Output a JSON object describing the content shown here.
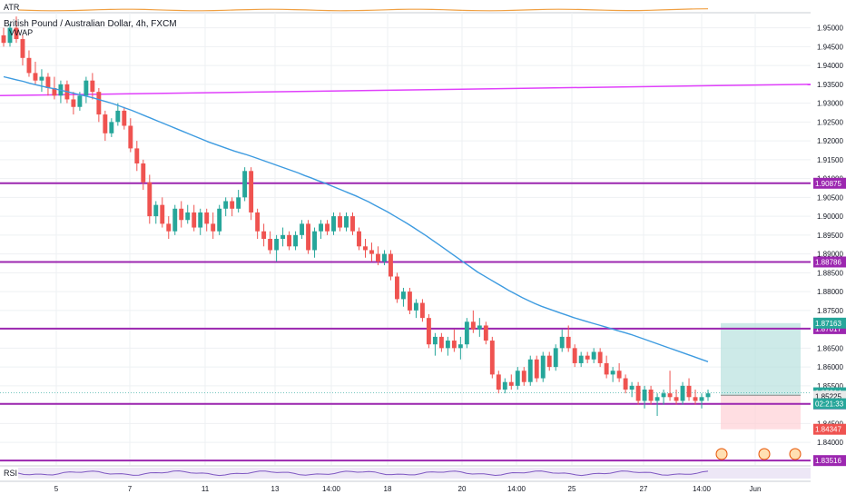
{
  "header": {
    "indicator_atr": "ATR",
    "symbol": "British Pound / Australian Dollar, 4h, FXCM",
    "indicator_vwap": "VWAP",
    "indicator_rsi": "RSI"
  },
  "colors": {
    "up": "#26a69a",
    "down": "#ef5350",
    "ma": "#3d9be0",
    "level": "#9c27b0",
    "trend": "#e040fb",
    "atr": "#f0a043",
    "rsi": "#7e57c2",
    "grid": "#eef0f3"
  },
  "chart_data": {
    "type": "candlestick",
    "ylim": [
      1.834,
      1.954
    ],
    "y_ticks": [
      "1.95000",
      "1.94500",
      "1.94000",
      "1.93500",
      "1.93000",
      "1.92500",
      "1.92000",
      "1.91500",
      "1.91000",
      "1.90500",
      "1.90000",
      "1.89500",
      "1.89000",
      "1.88500",
      "1.88000",
      "1.87500",
      "1.87000",
      "1.86500",
      "1.86000",
      "1.85500",
      "1.85000",
      "1.84500",
      "1.84000"
    ],
    "x_labels": [
      "5",
      "7",
      "11",
      "13",
      "14:00",
      "18",
      "20",
      "14:00",
      "25",
      "27",
      "14:00",
      "Jun"
    ],
    "horizontal_levels": [
      {
        "value": 1.90875,
        "label": "1.90875"
      },
      {
        "value": 1.88786,
        "label": "1.88786"
      },
      {
        "value": 1.87017,
        "label": "1.87017"
      },
      {
        "value": 1.85021,
        "label": "1.85021"
      },
      {
        "value": 1.83516,
        "label": "1.83516"
      }
    ],
    "trendline": {
      "start": 1.932,
      "end": 1.935
    },
    "price_labels": [
      {
        "value": 1.87163,
        "label": "1.87163",
        "color": "#26a69a"
      },
      {
        "value": 1.85314,
        "label": "1.85314",
        "color": "#26a69a"
      },
      {
        "value": 1.85225,
        "label": "1.85225",
        "color": "#e9e9e9"
      },
      {
        "value": 1.84347,
        "label": "1.84347",
        "color": "#ef5350"
      }
    ],
    "countdown": "02:21:33",
    "position": {
      "entry": 1.8525,
      "target": 1.87163,
      "stop": 1.84347
    },
    "candles": [
      [
        1.948,
        1.95,
        1.945,
        1.946
      ],
      [
        1.946,
        1.951,
        1.945,
        1.95
      ],
      [
        1.95,
        1.953,
        1.946,
        1.947
      ],
      [
        1.947,
        1.948,
        1.94,
        1.942
      ],
      [
        1.942,
        1.944,
        1.937,
        1.938
      ],
      [
        1.938,
        1.941,
        1.935,
        1.936
      ],
      [
        1.936,
        1.939,
        1.933,
        1.937
      ],
      [
        1.937,
        1.938,
        1.932,
        1.934
      ],
      [
        1.934,
        1.937,
        1.931,
        1.932
      ],
      [
        1.932,
        1.936,
        1.93,
        1.935
      ],
      [
        1.935,
        1.936,
        1.93,
        1.931
      ],
      [
        1.931,
        1.933,
        1.927,
        1.929
      ],
      [
        1.929,
        1.933,
        1.928,
        1.932
      ],
      [
        1.932,
        1.937,
        1.93,
        1.936
      ],
      [
        1.936,
        1.938,
        1.931,
        1.933
      ],
      [
        1.933,
        1.934,
        1.925,
        1.927
      ],
      [
        1.927,
        1.928,
        1.92,
        1.922
      ],
      [
        1.922,
        1.926,
        1.921,
        1.925
      ],
      [
        1.925,
        1.93,
        1.924,
        1.928
      ],
      [
        1.928,
        1.929,
        1.923,
        1.924
      ],
      [
        1.924,
        1.926,
        1.917,
        1.918
      ],
      [
        1.918,
        1.92,
        1.912,
        1.914
      ],
      [
        1.914,
        1.915,
        1.907,
        1.909
      ],
      [
        1.909,
        1.911,
        1.898,
        1.9
      ],
      [
        1.9,
        1.904,
        1.898,
        1.903
      ],
      [
        1.903,
        1.905,
        1.897,
        1.898
      ],
      [
        1.898,
        1.9,
        1.894,
        1.896
      ],
      [
        1.896,
        1.903,
        1.895,
        1.902
      ],
      [
        1.902,
        1.904,
        1.897,
        1.899
      ],
      [
        1.899,
        1.903,
        1.898,
        1.901
      ],
      [
        1.901,
        1.903,
        1.896,
        1.897
      ],
      [
        1.897,
        1.902,
        1.895,
        1.901
      ],
      [
        1.901,
        1.902,
        1.896,
        1.898
      ],
      [
        1.898,
        1.901,
        1.894,
        1.896
      ],
      [
        1.896,
        1.903,
        1.895,
        1.902
      ],
      [
        1.902,
        1.905,
        1.9,
        1.904
      ],
      [
        1.904,
        1.905,
        1.9,
        1.902
      ],
      [
        1.902,
        1.907,
        1.901,
        1.905
      ],
      [
        1.905,
        1.913,
        1.904,
        1.912
      ],
      [
        1.912,
        1.913,
        1.899,
        1.901
      ],
      [
        1.901,
        1.902,
        1.894,
        1.896
      ],
      [
        1.896,
        1.898,
        1.892,
        1.894
      ],
      [
        1.894,
        1.896,
        1.89,
        1.891
      ],
      [
        1.891,
        1.895,
        1.888,
        1.894
      ],
      [
        1.894,
        1.897,
        1.892,
        1.895
      ],
      [
        1.895,
        1.896,
        1.891,
        1.892
      ],
      [
        1.892,
        1.896,
        1.891,
        1.895
      ],
      [
        1.895,
        1.899,
        1.894,
        1.898
      ],
      [
        1.898,
        1.899,
        1.89,
        1.891
      ],
      [
        1.891,
        1.897,
        1.889,
        1.896
      ],
      [
        1.896,
        1.899,
        1.894,
        1.898
      ],
      [
        1.898,
        1.899,
        1.895,
        1.896
      ],
      [
        1.896,
        1.901,
        1.895,
        1.9
      ],
      [
        1.9,
        1.901,
        1.896,
        1.897
      ],
      [
        1.897,
        1.901,
        1.896,
        1.9
      ],
      [
        1.9,
        1.901,
        1.895,
        1.896
      ],
      [
        1.896,
        1.897,
        1.891,
        1.892
      ],
      [
        1.892,
        1.894,
        1.889,
        1.891
      ],
      [
        1.891,
        1.893,
        1.888,
        1.89
      ],
      [
        1.89,
        1.892,
        1.887,
        1.888
      ],
      [
        1.888,
        1.891,
        1.887,
        1.89
      ],
      [
        1.89,
        1.891,
        1.883,
        1.884
      ],
      [
        1.884,
        1.885,
        1.877,
        1.878
      ],
      [
        1.878,
        1.881,
        1.876,
        1.88
      ],
      [
        1.88,
        1.881,
        1.874,
        1.875
      ],
      [
        1.875,
        1.878,
        1.873,
        1.877
      ],
      [
        1.877,
        1.878,
        1.872,
        1.873
      ],
      [
        1.873,
        1.874,
        1.865,
        1.866
      ],
      [
        1.866,
        1.869,
        1.863,
        1.868
      ],
      [
        1.868,
        1.869,
        1.864,
        1.865
      ],
      [
        1.865,
        1.868,
        1.863,
        1.867
      ],
      [
        1.867,
        1.87,
        1.864,
        1.865
      ],
      [
        1.865,
        1.868,
        1.862,
        1.866
      ],
      [
        1.866,
        1.873,
        1.865,
        1.872
      ],
      [
        1.872,
        1.875,
        1.869,
        1.87
      ],
      [
        1.87,
        1.873,
        1.868,
        1.871
      ],
      [
        1.871,
        1.872,
        1.866,
        1.867
      ],
      [
        1.867,
        1.868,
        1.857,
        1.858
      ],
      [
        1.858,
        1.859,
        1.853,
        1.854
      ],
      [
        1.854,
        1.857,
        1.853,
        1.856
      ],
      [
        1.856,
        1.858,
        1.854,
        1.855
      ],
      [
        1.855,
        1.86,
        1.854,
        1.859
      ],
      [
        1.859,
        1.86,
        1.855,
        1.856
      ],
      [
        1.856,
        1.863,
        1.855,
        1.862
      ],
      [
        1.862,
        1.863,
        1.856,
        1.857
      ],
      [
        1.857,
        1.864,
        1.856,
        1.863
      ],
      [
        1.863,
        1.864,
        1.859,
        1.86
      ],
      [
        1.86,
        1.866,
        1.859,
        1.865
      ],
      [
        1.865,
        1.87,
        1.864,
        1.868
      ],
      [
        1.868,
        1.871,
        1.864,
        1.865
      ],
      [
        1.865,
        1.866,
        1.86,
        1.861
      ],
      [
        1.861,
        1.864,
        1.86,
        1.863
      ],
      [
        1.863,
        1.864,
        1.861,
        1.862
      ],
      [
        1.862,
        1.865,
        1.861,
        1.864
      ],
      [
        1.864,
        1.865,
        1.86,
        1.861
      ],
      [
        1.861,
        1.863,
        1.857,
        1.858
      ],
      [
        1.858,
        1.86,
        1.856,
        1.859
      ],
      [
        1.859,
        1.861,
        1.856,
        1.857
      ],
      [
        1.857,
        1.858,
        1.853,
        1.854
      ],
      [
        1.854,
        1.856,
        1.852,
        1.855
      ],
      [
        1.855,
        1.856,
        1.85,
        1.851
      ],
      [
        1.851,
        1.855,
        1.849,
        1.854
      ],
      [
        1.854,
        1.855,
        1.85,
        1.851
      ],
      [
        1.851,
        1.853,
        1.847,
        1.852
      ],
      [
        1.852,
        1.854,
        1.85,
        1.853
      ],
      [
        1.853,
        1.859,
        1.851,
        1.852
      ],
      [
        1.852,
        1.854,
        1.85,
        1.851
      ],
      [
        1.851,
        1.856,
        1.85,
        1.855
      ],
      [
        1.855,
        1.857,
        1.851,
        1.852
      ],
      [
        1.852,
        1.854,
        1.85,
        1.851
      ],
      [
        1.851,
        1.853,
        1.849,
        1.852
      ],
      [
        1.852,
        1.854,
        1.851,
        1.853
      ]
    ],
    "ma": [
      1.937,
      1.9366,
      1.9362,
      1.9358,
      1.9353,
      1.9349,
      1.9345,
      1.9341,
      1.9338,
      1.9334,
      1.933,
      1.9326,
      1.9322,
      1.9318,
      1.9314,
      1.9309,
      1.9304,
      1.9299,
      1.9293,
      1.9287,
      1.9281,
      1.9274,
      1.9267,
      1.926,
      1.9253,
      1.9246,
      1.9239,
      1.9232,
      1.9225,
      1.9218,
      1.9211,
      1.9204,
      1.9197,
      1.9191,
      1.9185,
      1.9179,
      1.9173,
      1.9168,
      1.9163,
      1.9157,
      1.9151,
      1.9145,
      1.9139,
      1.9133,
      1.9127,
      1.9121,
      1.9115,
      1.9108,
      1.9102,
      1.9095,
      1.9089,
      1.9082,
      1.9075,
      1.9068,
      1.9061,
      1.9054,
      1.9046,
      1.9038,
      1.9029,
      1.902,
      1.9011,
      1.9001,
      1.8991,
      1.8981,
      1.897,
      1.8959,
      1.8948,
      1.8936,
      1.8924,
      1.8912,
      1.89,
      1.8888,
      1.8876,
      1.8864,
      1.8852,
      1.8842,
      1.8832,
      1.8822,
      1.8812,
      1.8802,
      1.8793,
      1.8784,
      1.8776,
      1.8768,
      1.8761,
      1.8755,
      1.8749,
      1.8743,
      1.8737,
      1.8731,
      1.8726,
      1.8721,
      1.8716,
      1.8711,
      1.8706,
      1.8701,
      1.8696,
      1.8691,
      1.8686,
      1.868,
      1.8674,
      1.8668,
      1.8662,
      1.8656,
      1.865,
      1.8644,
      1.8638,
      1.8632,
      1.8626,
      1.862,
      1.8614
    ]
  }
}
